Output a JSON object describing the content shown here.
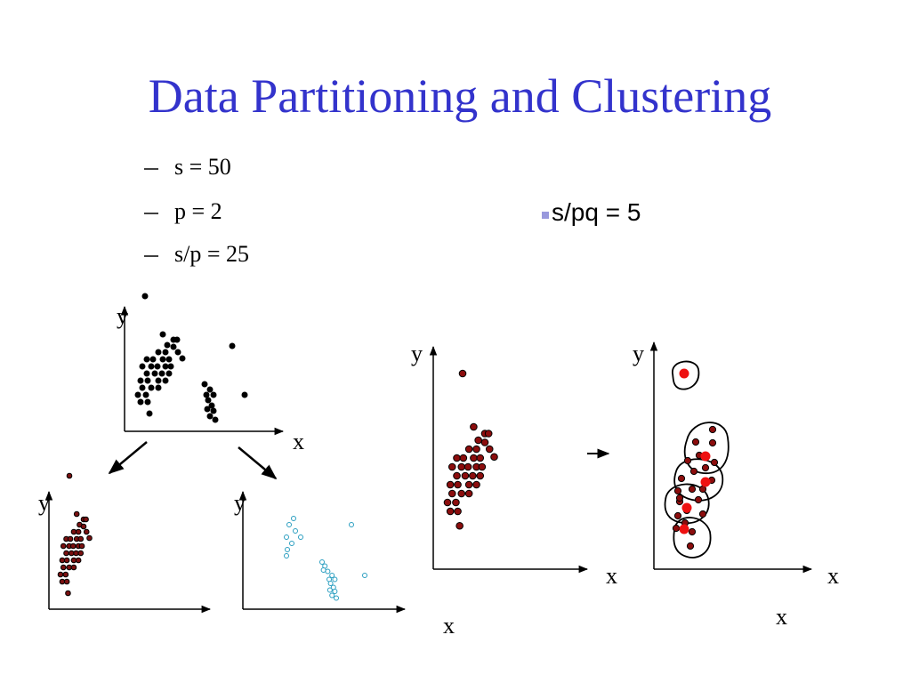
{
  "header": {
    "title": "Data Partitioning and Clustering"
  },
  "bullets": [
    "s = 50",
    "p = 2",
    "s/p = 25"
  ],
  "side_note": "s/pq = 5",
  "plots": [
    {
      "y_label": "y",
      "x_label": "x"
    },
    {
      "y_label": "y"
    },
    {
      "y_label": "y"
    },
    {
      "y_label": "y",
      "x_label": "x"
    },
    {
      "y_label": "y",
      "x_label": "x"
    }
  ],
  "extra_labels": [
    "x",
    "x"
  ]
}
